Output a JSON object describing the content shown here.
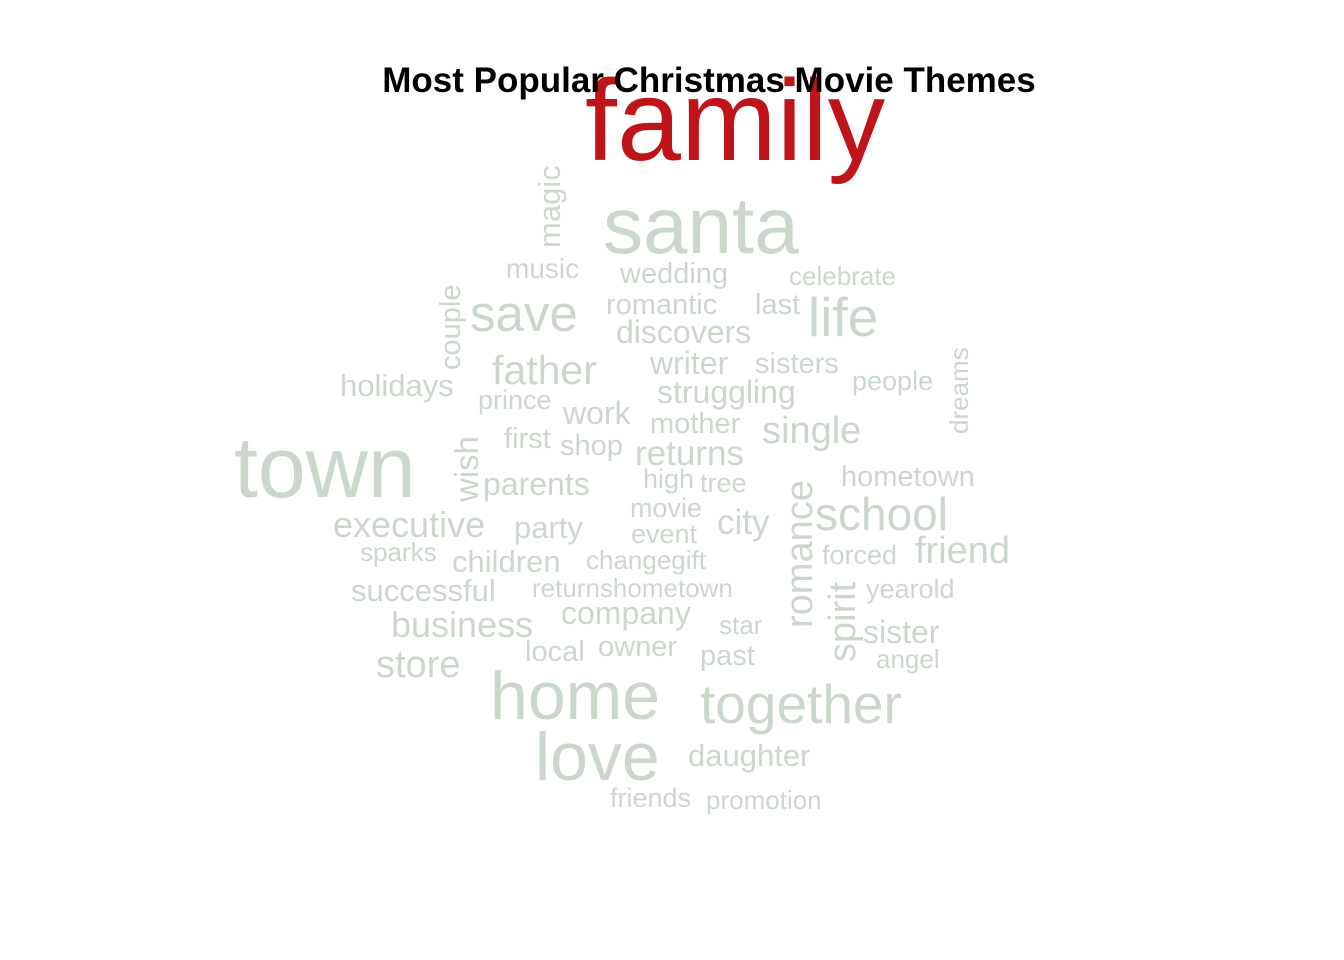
{
  "chart_data": {
    "type": "wordcloud",
    "title": "Most Popular Christmas Movie Themes",
    "colors": {
      "top_word": "#c0141b",
      "other_words": "#ccd7cc"
    },
    "words": [
      {
        "text": "family",
        "rank": 1
      },
      {
        "text": "santa",
        "rank": 2
      },
      {
        "text": "town",
        "rank": 2
      },
      {
        "text": "home",
        "rank": 3
      },
      {
        "text": "love",
        "rank": 3
      },
      {
        "text": "together",
        "rank": 4
      },
      {
        "text": "life",
        "rank": 5
      },
      {
        "text": "save",
        "rank": 5
      },
      {
        "text": "school",
        "rank": 5
      },
      {
        "text": "romance",
        "rank": 6
      },
      {
        "text": "father",
        "rank": 6
      },
      {
        "text": "spirit",
        "rank": 6
      },
      {
        "text": "single",
        "rank": 7
      },
      {
        "text": "friend",
        "rank": 7
      },
      {
        "text": "executive",
        "rank": 7
      },
      {
        "text": "business",
        "rank": 7
      },
      {
        "text": "store",
        "rank": 7
      },
      {
        "text": "returns",
        "rank": 8
      },
      {
        "text": "struggling",
        "rank": 8
      },
      {
        "text": "writer",
        "rank": 8
      },
      {
        "text": "discovers",
        "rank": 8
      },
      {
        "text": "city",
        "rank": 8
      },
      {
        "text": "company",
        "rank": 8
      },
      {
        "text": "magic",
        "rank": 9
      },
      {
        "text": "wish",
        "rank": 9
      },
      {
        "text": "romantic",
        "rank": 9
      },
      {
        "text": "wedding",
        "rank": 9
      },
      {
        "text": "work",
        "rank": 9
      },
      {
        "text": "parents",
        "rank": 9
      },
      {
        "text": "party",
        "rank": 9
      },
      {
        "text": "children",
        "rank": 9
      },
      {
        "text": "successful",
        "rank": 9
      },
      {
        "text": "sister",
        "rank": 9
      },
      {
        "text": "daughter",
        "rank": 9
      },
      {
        "text": "holidays",
        "rank": 9
      },
      {
        "text": "couple",
        "rank": 10
      },
      {
        "text": "music",
        "rank": 10
      },
      {
        "text": "last",
        "rank": 10
      },
      {
        "text": "celebrate",
        "rank": 10
      },
      {
        "text": "mother",
        "rank": 10
      },
      {
        "text": "sisters",
        "rank": 10
      },
      {
        "text": "people",
        "rank": 10
      },
      {
        "text": "first",
        "rank": 10
      },
      {
        "text": "shop",
        "rank": 10
      },
      {
        "text": "hometown",
        "rank": 10
      },
      {
        "text": "movie",
        "rank": 10
      },
      {
        "text": "owner",
        "rank": 10
      },
      {
        "text": "local",
        "rank": 10
      },
      {
        "text": "past",
        "rank": 10
      },
      {
        "text": "friends",
        "rank": 10
      },
      {
        "text": "dreams",
        "rank": 11
      },
      {
        "text": "prince",
        "rank": 11
      },
      {
        "text": "high",
        "rank": 11
      },
      {
        "text": "tree",
        "rank": 11
      },
      {
        "text": "event",
        "rank": 11
      },
      {
        "text": "forced",
        "rank": 11
      },
      {
        "text": "changegift",
        "rank": 11
      },
      {
        "text": "returnshometown",
        "rank": 11
      },
      {
        "text": "yearold",
        "rank": 11
      },
      {
        "text": "star",
        "rank": 11
      },
      {
        "text": "angel",
        "rank": 11
      },
      {
        "text": "promotion",
        "rank": 11
      },
      {
        "text": "sparks",
        "rank": 11
      }
    ]
  }
}
